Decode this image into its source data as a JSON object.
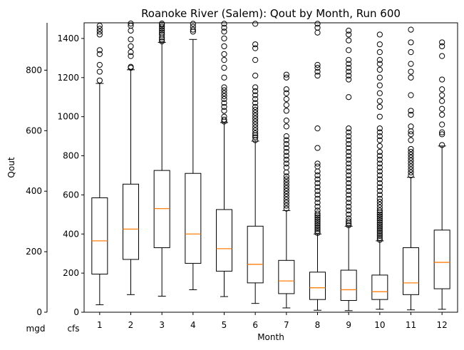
{
  "chart_data": {
    "type": "box",
    "title": "Roanoke River (Salem): Qout by Month, Run 600",
    "xlabel": "Month",
    "ylabel": "Qout",
    "categories": [
      "1",
      "2",
      "3",
      "4",
      "5",
      "6",
      "7",
      "8",
      "9",
      "10",
      "11",
      "12"
    ],
    "left_axis_unit": "mgd",
    "right_axis_unit": "cfs",
    "cfs_ylim": [
      0,
      1480
    ],
    "cfs_ticks": [
      0,
      200,
      400,
      600,
      800,
      1000,
      1200,
      1400
    ],
    "cfs_tick_labels": [
      "0",
      "200",
      "400",
      "600",
      "800",
      "1000",
      "1200",
      "1400"
    ],
    "mgd_ticks": [
      0,
      200,
      400,
      600,
      800
    ],
    "mgd_tick_labels": [
      "0",
      "200",
      "400",
      "600",
      "800"
    ],
    "mgd_per_cfs": 0.646317,
    "grid": false,
    "box_color": "#000000",
    "median_color": "#ff7f0e",
    "boxes": [
      {
        "month": "1",
        "whislo": 38,
        "q1": 195,
        "med": 365,
        "q3": 585,
        "whishi": 1170,
        "fliers": [
          1185,
          1230,
          1265,
          1320,
          1340,
          1420,
          1435,
          1450,
          1465
        ]
      },
      {
        "month": "2",
        "whislo": 90,
        "q1": 270,
        "med": 425,
        "q3": 655,
        "whishi": 1240,
        "fliers": [
          1250,
          1255,
          1310,
          1330,
          1360,
          1395,
          1440,
          1465,
          1480
        ]
      },
      {
        "month": "3",
        "whislo": 82,
        "q1": 330,
        "med": 530,
        "q3": 725,
        "whishi": 1380,
        "fliers": [
          1385,
          1395,
          1405,
          1420,
          1430,
          1440,
          1450,
          1460,
          1470,
          1480
        ]
      },
      {
        "month": "4",
        "whislo": 115,
        "q1": 250,
        "med": 400,
        "q3": 710,
        "whishi": 1395,
        "fliers": [
          1435,
          1445,
          1460,
          1475
        ]
      },
      {
        "month": "5",
        "whislo": 80,
        "q1": 210,
        "med": 325,
        "q3": 525,
        "whishi": 970,
        "fliers": [
          975,
          985,
          1000,
          1030,
          1050,
          1070,
          1090,
          1105,
          1120,
          1135,
          1150,
          1200,
          1250,
          1290,
          1320,
          1360,
          1400,
          1435,
          1455,
          1475
        ]
      },
      {
        "month": "6",
        "whislo": 45,
        "q1": 150,
        "med": 245,
        "q3": 440,
        "whishi": 875,
        "fliers": [
          880,
          895,
          905,
          915,
          930,
          945,
          960,
          975,
          990,
          1005,
          1020,
          1035,
          1050,
          1070,
          1090,
          1110,
          1130,
          1150,
          1210,
          1290,
          1350,
          1370,
          1475
        ]
      },
      {
        "month": "7",
        "whislo": 22,
        "q1": 95,
        "med": 160,
        "q3": 265,
        "whishi": 520,
        "fliers": [
          530,
          545,
          560,
          575,
          590,
          605,
          620,
          635,
          650,
          665,
          680,
          695,
          715,
          740,
          760,
          780,
          800,
          820,
          840,
          860,
          880,
          900,
          950,
          980,
          1030,
          1060,
          1090,
          1120,
          1140,
          1200,
          1215
        ]
      },
      {
        "month": "8",
        "whislo": 10,
        "q1": 65,
        "med": 125,
        "q3": 205,
        "whishi": 400,
        "fliers": [
          405,
          415,
          425,
          435,
          445,
          455,
          465,
          475,
          485,
          495,
          505,
          520,
          540,
          560,
          580,
          600,
          620,
          640,
          660,
          680,
          700,
          720,
          745,
          760,
          840,
          940,
          1210,
          1230,
          1250,
          1265,
          1430,
          1455,
          1475
        ]
      },
      {
        "month": "9",
        "whislo": 8,
        "q1": 60,
        "med": 115,
        "q3": 215,
        "whishi": 440,
        "fliers": [
          445,
          455,
          465,
          480,
          500,
          520,
          540,
          560,
          580,
          600,
          620,
          640,
          660,
          680,
          700,
          720,
          740,
          760,
          780,
          800,
          820,
          840,
          860,
          880,
          900,
          920,
          940,
          1100,
          1190,
          1210,
          1230,
          1250,
          1270,
          1290,
          1340,
          1390,
          1420,
          1440
        ]
      },
      {
        "month": "10",
        "whislo": 15,
        "q1": 65,
        "med": 105,
        "q3": 190,
        "whishi": 365,
        "fliers": [
          370,
          380,
          390,
          400,
          410,
          420,
          430,
          440,
          450,
          460,
          470,
          480,
          490,
          500,
          510,
          520,
          535,
          550,
          565,
          580,
          600,
          620,
          640,
          660,
          680,
          700,
          720,
          740,
          760,
          780,
          800,
          820,
          850,
          880,
          900,
          920,
          940,
          1000,
          1050,
          1080,
          1120,
          1160,
          1200,
          1240,
          1270,
          1290,
          1330,
          1370,
          1420
        ]
      },
      {
        "month": "11",
        "whislo": 12,
        "q1": 90,
        "med": 150,
        "q3": 330,
        "whishi": 690,
        "fliers": [
          700,
          715,
          730,
          745,
          760,
          775,
          790,
          805,
          820,
          835,
          880,
          910,
          925,
          950,
          1010,
          1030,
          1110,
          1200,
          1230,
          1270,
          1330,
          1380,
          1445
        ]
      },
      {
        "month": "12",
        "whislo": 15,
        "q1": 120,
        "med": 255,
        "q3": 420,
        "whishi": 850,
        "fliers": [
          855,
          910,
          920,
          960,
          1010,
          1040,
          1080,
          1110,
          1140,
          1190,
          1310,
          1360,
          1380
        ]
      }
    ]
  }
}
